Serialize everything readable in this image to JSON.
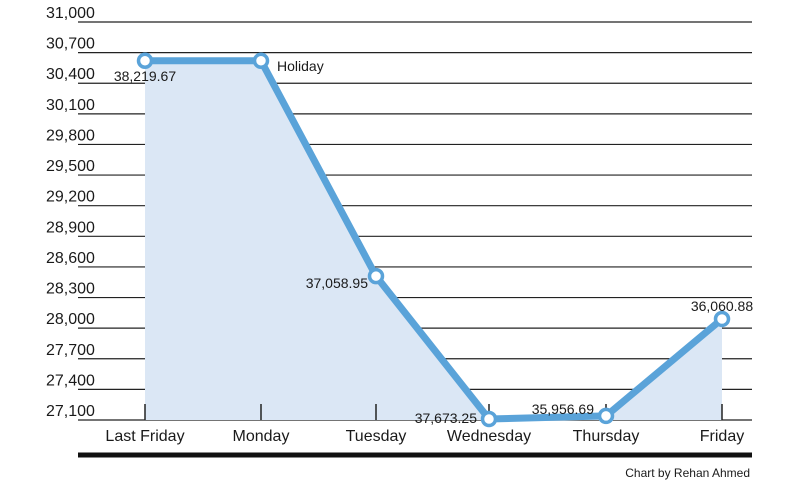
{
  "chart_data": {
    "type": "area",
    "title": "",
    "xlabel": "",
    "ylabel": "",
    "categories": [
      "Last Friday",
      "Monday",
      "Tuesday",
      "Wednesday",
      "Thursday",
      "Friday"
    ],
    "values": [
      30620,
      30620,
      28510,
      27110,
      27140,
      28090
    ],
    "point_labels": [
      "38,219.67",
      "Holiday",
      "37,058.95",
      "37,673.25",
      "35,956.69",
      "36,060.88"
    ],
    "y_ticks": [
      "31,000",
      "30,700",
      "30,400",
      "30,100",
      "29,800",
      "29,500",
      "29,200",
      "28,900",
      "28,600",
      "28,300",
      "28,000",
      "27,700",
      "27,400",
      "27,100"
    ],
    "ylim": [
      27100,
      31000
    ],
    "grid": true,
    "line_color": "#5aa3d9",
    "fill_color": "#dbe7f5",
    "credit": "Chart by Rehan Ahmed"
  }
}
